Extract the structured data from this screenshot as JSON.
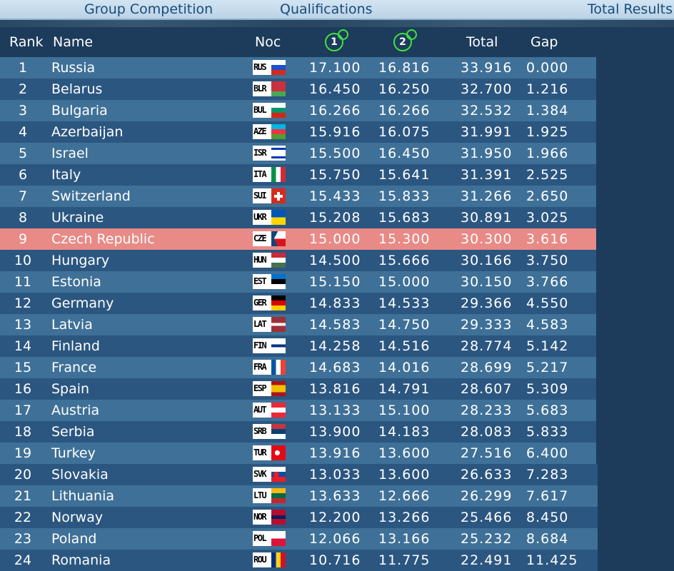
{
  "tabs": {
    "group": "Group Competition",
    "qualifications": "Qualifications",
    "total": "Total Results"
  },
  "columns": {
    "rank": "Rank",
    "name": "Name",
    "noc": "Noc",
    "apparatus_1": "1",
    "apparatus_2": "2",
    "total": "Total",
    "gap": "Gap"
  },
  "highlight_color": "#e88a86",
  "rows": [
    {
      "rank": "1",
      "name": "Russia",
      "noc": "RUS",
      "j1": "17.100",
      "j2": "16.816",
      "total": "33.916",
      "gap": "0.000",
      "flag": "linear-gradient(#ffffff 0 33%, #1f4fcc 33% 66%, #d52b1e 66%)"
    },
    {
      "rank": "2",
      "name": "Belarus",
      "noc": "BLR",
      "j1": "16.450",
      "j2": "16.250",
      "total": "32.700",
      "gap": "1.216",
      "flag": "linear-gradient(#c8313e 0 66%, #4aa657 66%)"
    },
    {
      "rank": "3",
      "name": "Bulgaria",
      "noc": "BUL",
      "j1": "16.266",
      "j2": "16.266",
      "total": "32.532",
      "gap": "1.384",
      "flag": "linear-gradient(#ffffff 0 33%, #00966e 33% 66%, #d62612 66%)"
    },
    {
      "rank": "4",
      "name": "Azerbaijan",
      "noc": "AZE",
      "j1": "15.916",
      "j2": "16.075",
      "total": "31.991",
      "gap": "1.925",
      "flag": "linear-gradient(#00b5e2 0 33%, #ef3340 33% 66%, #509e2f 66%)"
    },
    {
      "rank": "5",
      "name": "Israel",
      "noc": "ISR",
      "j1": "15.500",
      "j2": "16.450",
      "total": "31.950",
      "gap": "1.966",
      "flag": "linear-gradient(#ffffff 0 15%, #0038b8 15% 28%, #ffffff 28% 72%, #0038b8 72% 85%, #ffffff 85%)"
    },
    {
      "rank": "6",
      "name": "Italy",
      "noc": "ITA",
      "j1": "15.750",
      "j2": "15.641",
      "total": "31.391",
      "gap": "2.525",
      "flag": "linear-gradient(90deg,#009246 0 33%, #ffffff 33% 66%, #ce2b37 66%)"
    },
    {
      "rank": "7",
      "name": "Switzerland",
      "noc": "SUI",
      "j1": "15.433",
      "j2": "15.833",
      "total": "31.266",
      "gap": "2.650",
      "flag": "linear-gradient(#ffffff,#ffffff) center/12px 4px no-repeat, linear-gradient(#ffffff,#ffffff) center/4px 12px no-repeat, #d52b1e"
    },
    {
      "rank": "8",
      "name": "Ukraine",
      "noc": "UKR",
      "j1": "15.208",
      "j2": "15.683",
      "total": "30.891",
      "gap": "3.025",
      "flag": "linear-gradient(#0057b7 0 50%, #ffd700 50%)"
    },
    {
      "rank": "9",
      "name": "Czech Republic",
      "noc": "CZE",
      "j1": "15.000",
      "j2": "15.300",
      "total": "30.300",
      "gap": "3.616",
      "highlight": true,
      "flag": "linear-gradient(118deg,#11457e 0 30%, transparent 30%), linear-gradient(62deg,#11457e 0 30%, transparent 30%), linear-gradient(#ffffff 0 50%, #d7141a 50%)"
    },
    {
      "rank": "10",
      "name": "Hungary",
      "noc": "HUN",
      "j1": "14.500",
      "j2": "15.666",
      "total": "30.166",
      "gap": "3.750",
      "flag": "linear-gradient(#ce2939 0 33%, #ffffff 33% 66%, #477050 66%)"
    },
    {
      "rank": "11",
      "name": "Estonia",
      "noc": "EST",
      "j1": "15.150",
      "j2": "15.000",
      "total": "30.150",
      "gap": "3.766",
      "flag": "linear-gradient(#0072ce 0 33%, #000000 33% 66%, #ffffff 66%)"
    },
    {
      "rank": "12",
      "name": "Germany",
      "noc": "GER",
      "j1": "14.833",
      "j2": "14.533",
      "total": "29.366",
      "gap": "4.550",
      "flag": "linear-gradient(#000000 0 33%, #dd0000 33% 66%, #ffce00 66%)"
    },
    {
      "rank": "13",
      "name": "Latvia",
      "noc": "LAT",
      "j1": "14.583",
      "j2": "14.750",
      "total": "29.333",
      "gap": "4.583",
      "flag": "linear-gradient(#9e3039 0 40%, #ffffff 40% 60%, #9e3039 60%)"
    },
    {
      "rank": "14",
      "name": "Finland",
      "noc": "FIN",
      "j1": "14.258",
      "j2": "14.516",
      "total": "28.774",
      "gap": "5.142",
      "flag": "linear-gradient(#ffffff 0 40%, #003580 40% 60%, #ffffff 60%)"
    },
    {
      "rank": "15",
      "name": "France",
      "noc": "FRA",
      "j1": "14.683",
      "j2": "14.016",
      "total": "28.699",
      "gap": "5.217",
      "flag": "linear-gradient(90deg,#0055a4 0 33%, #ffffff 33% 66%, #ef4135 66%)"
    },
    {
      "rank": "16",
      "name": "Spain",
      "noc": "ESP",
      "j1": "13.816",
      "j2": "14.791",
      "total": "28.607",
      "gap": "5.309",
      "flag": "linear-gradient(#aa151b 0 25%, #f1bf00 25% 75%, #aa151b 75%)"
    },
    {
      "rank": "17",
      "name": "Austria",
      "noc": "AUT",
      "j1": "13.133",
      "j2": "15.100",
      "total": "28.233",
      "gap": "5.683",
      "flag": "linear-gradient(#ed2939 0 33%, #ffffff 33% 66%, #ed2939 66%)"
    },
    {
      "rank": "18",
      "name": "Serbia",
      "noc": "SRB",
      "j1": "13.900",
      "j2": "14.183",
      "total": "28.083",
      "gap": "5.833",
      "flag": "linear-gradient(#c6363c 0 33%, #0c4076 33% 66%, #ffffff 66%)"
    },
    {
      "rank": "19",
      "name": "Turkey",
      "noc": "TUR",
      "j1": "13.916",
      "j2": "13.600",
      "total": "27.516",
      "gap": "6.400",
      "flag": "radial-gradient(circle at 42% 50%, #ffffff 0 22%, transparent 23%), #e30a17"
    },
    {
      "rank": "20",
      "name": "Slovakia",
      "noc": "SVK",
      "j1": "13.033",
      "j2": "13.600",
      "total": "26.633",
      "gap": "7.283",
      "flag": "radial-gradient(circle at 35% 50%, #ee1c25 0 22%, transparent 23%), linear-gradient(#ffffff 0 33%, #0b4ea2 33% 66%, #ee1c25 66%)"
    },
    {
      "rank": "21",
      "name": "Lithuania",
      "noc": "LTU",
      "j1": "13.633",
      "j2": "12.666",
      "total": "26.299",
      "gap": "7.617",
      "flag": "linear-gradient(#fdb913 0 33%, #006a44 33% 66%, #c1272d 66%)"
    },
    {
      "rank": "22",
      "name": "Norway",
      "noc": "NOR",
      "j1": "12.200",
      "j2": "13.266",
      "total": "25.466",
      "gap": "8.450",
      "flag": "linear-gradient(#ba0c2f 0 38%, #00205b 38% 62%, #ba0c2f 62%)"
    },
    {
      "rank": "23",
      "name": "Poland",
      "noc": "POL",
      "j1": "12.066",
      "j2": "13.166",
      "total": "25.232",
      "gap": "8.684",
      "flag": "linear-gradient(#ffffff 0 50%, #dc143c 50%)"
    },
    {
      "rank": "24",
      "name": "Romania",
      "noc": "ROU",
      "j1": "10.716",
      "j2": "11.775",
      "total": "22.491",
      "gap": "11.425",
      "flag": "linear-gradient(90deg,#002b7f 0 33%, #fcd116 33% 66%, #ce1126 66%)"
    }
  ]
}
